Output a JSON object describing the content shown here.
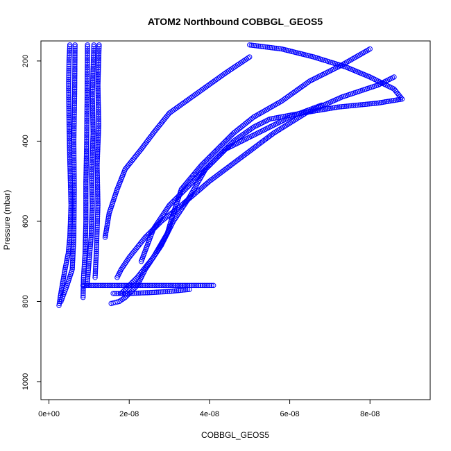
{
  "chart_data": {
    "type": "scatter",
    "title": "ATOM2 Northbound COBBGL_GEOS5",
    "xlabel": "COBBGL_GEOS5",
    "ylabel": "Pressure (mbar)",
    "xlim": [
      -2e-09,
      9.5e-08
    ],
    "ylim": [
      1045,
      150
    ],
    "y_reversed": true,
    "x_ticks": [
      0,
      2e-08,
      4e-08,
      6e-08,
      8e-08
    ],
    "x_tick_labels": [
      "0e+00",
      "2e-08",
      "4e-08",
      "6e-08",
      "8e-08"
    ],
    "y_ticks": [
      200,
      400,
      600,
      800,
      1000
    ],
    "y_tick_labels": [
      "200",
      "400",
      "600",
      "800",
      "1000"
    ],
    "marker": "open-circle",
    "color": "#0000ff",
    "grid": false,
    "series": [
      {
        "x": [
          2.5e-09,
          2.8e-09,
          3.3e-09,
          4e-09,
          4.8e-09,
          5.2e-09,
          5.5e-09,
          5.2e-09,
          5e-09,
          4.9e-09,
          5e-09,
          5.2e-09
        ],
        "y": [
          810,
          790,
          760,
          720,
          680,
          640,
          560,
          450,
          350,
          260,
          200,
          160
        ]
      },
      {
        "x": [
          3e-09,
          4.5e-09,
          5.8e-09,
          6.2e-09,
          6.3e-09,
          6.2e-09,
          6.4e-09,
          6.5e-09
        ],
        "y": [
          800,
          760,
          720,
          640,
          520,
          400,
          280,
          160
        ]
      },
      {
        "x": [
          8.5e-09,
          8.6e-09,
          9e-09,
          9.2e-09,
          9.2e-09,
          9.4e-09,
          9.5e-09,
          9.6e-09
        ],
        "y": [
          790,
          740,
          680,
          600,
          500,
          400,
          300,
          160
        ]
      },
      {
        "x": [
          9.5e-09,
          1e-08,
          1.05e-08,
          1.08e-08,
          1.06e-08,
          1.1e-08,
          1.08e-08,
          1.12e-08
        ],
        "y": [
          760,
          700,
          640,
          560,
          480,
          380,
          280,
          160
        ]
      },
      {
        "x": [
          1.15e-08,
          1.18e-08,
          1.2e-08,
          1.22e-08,
          1.2e-08,
          1.24e-08,
          1.22e-08,
          1.25e-08
        ],
        "y": [
          740,
          680,
          620,
          560,
          460,
          360,
          260,
          160
        ]
      },
      {
        "x": [
          1.55e-08,
          1.75e-08,
          1.9e-08,
          2.2e-08,
          2.4e-08,
          2.8e-08,
          3.1e-08,
          3.5e-08,
          3.9e-08,
          4.6e-08,
          5.1e-08,
          5.5e-08,
          6.3e-08,
          7.2e-08,
          8.2e-08,
          8.8e-08,
          8.6e-08,
          8e-08,
          7.4e-08,
          6.6e-08,
          5.8e-08,
          5e-08
        ],
        "y": [
          805,
          800,
          790,
          760,
          720,
          660,
          600,
          540,
          470,
          400,
          365,
          345,
          330,
          315,
          305,
          295,
          270,
          240,
          215,
          190,
          170,
          160
        ]
      },
      {
        "x": [
          1.8e-08,
          2e-08,
          2.2e-08,
          2.6e-08,
          2.95e-08,
          3.1e-08,
          3.3e-08,
          3.8e-08,
          4.2e-08,
          4.6e-08,
          5.1e-08,
          5.8e-08,
          6.5e-08,
          7.3e-08,
          8e-08
        ],
        "y": [
          780,
          760,
          740,
          690,
          630,
          580,
          520,
          460,
          420,
          380,
          340,
          300,
          250,
          210,
          170
        ]
      },
      {
        "x": [
          1.7e-08,
          1.8e-08,
          2e-08,
          2.4e-08,
          2.8e-08,
          3.3e-08,
          4e-08,
          4.8e-08,
          5.6e-08,
          6.4e-08,
          7.3e-08,
          8.2e-08,
          8.6e-08
        ],
        "y": [
          740,
          720,
          690,
          640,
          600,
          560,
          500,
          440,
          380,
          330,
          290,
          260,
          240
        ]
      },
      {
        "x": [
          1.4e-08,
          1.5e-08,
          1.7e-08,
          1.9e-08,
          2.3e-08,
          2.6e-08,
          3e-08,
          3.7e-08,
          4.4e-08,
          5e-08
        ],
        "y": [
          640,
          580,
          520,
          470,
          420,
          380,
          330,
          280,
          230,
          190
        ]
      },
      {
        "x": [
          8.5e-09,
          1.5e-08,
          2.5e-08,
          3.5e-08,
          4.1e-08
        ],
        "y": [
          760,
          760,
          760,
          760,
          760
        ]
      },
      {
        "x": [
          1.6e-08,
          2e-08,
          2.5e-08,
          3e-08,
          3.5e-08
        ],
        "y": [
          780,
          780,
          778,
          775,
          770
        ]
      },
      {
        "x": [
          2.3e-08,
          2.6e-08,
          3e-08,
          3.6e-08,
          4.4e-08,
          5.2e-08,
          6e-08,
          6.8e-08
        ],
        "y": [
          700,
          620,
          560,
          500,
          420,
          380,
          340,
          310
        ]
      }
    ]
  }
}
